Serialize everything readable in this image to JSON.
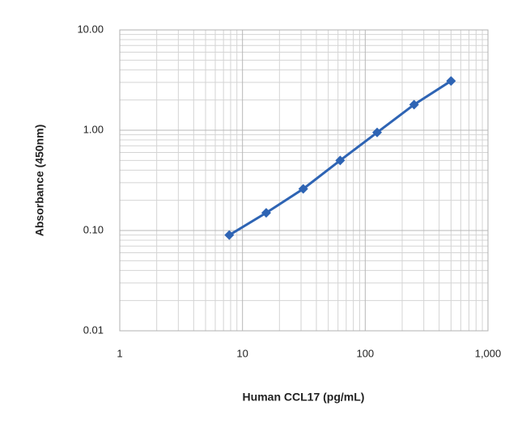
{
  "chart_data": {
    "type": "line",
    "x_label": "Human CCL17 (pg/mL)",
    "y_label": "Absorbance (450nm)",
    "x": [
      7.8,
      15.6,
      31.25,
      62.5,
      125,
      250,
      500
    ],
    "values": [
      0.09,
      0.15,
      0.26,
      0.5,
      0.95,
      1.8,
      3.1
    ],
    "color": "#2e64b4",
    "x_scale": "log",
    "y_scale": "log",
    "xlim": [
      1,
      1000
    ],
    "ylim": [
      0.01,
      10
    ],
    "xticks": [
      1,
      10,
      100,
      {
        "value": 1000,
        "label": "1,000"
      }
    ],
    "yticks": [
      0.01,
      {
        "value": 0.1,
        "label": "0.10"
      },
      {
        "value": 1,
        "label": "1.00"
      },
      {
        "value": 10,
        "label": "10.00"
      }
    ],
    "grid": true,
    "minor_grid": true
  }
}
